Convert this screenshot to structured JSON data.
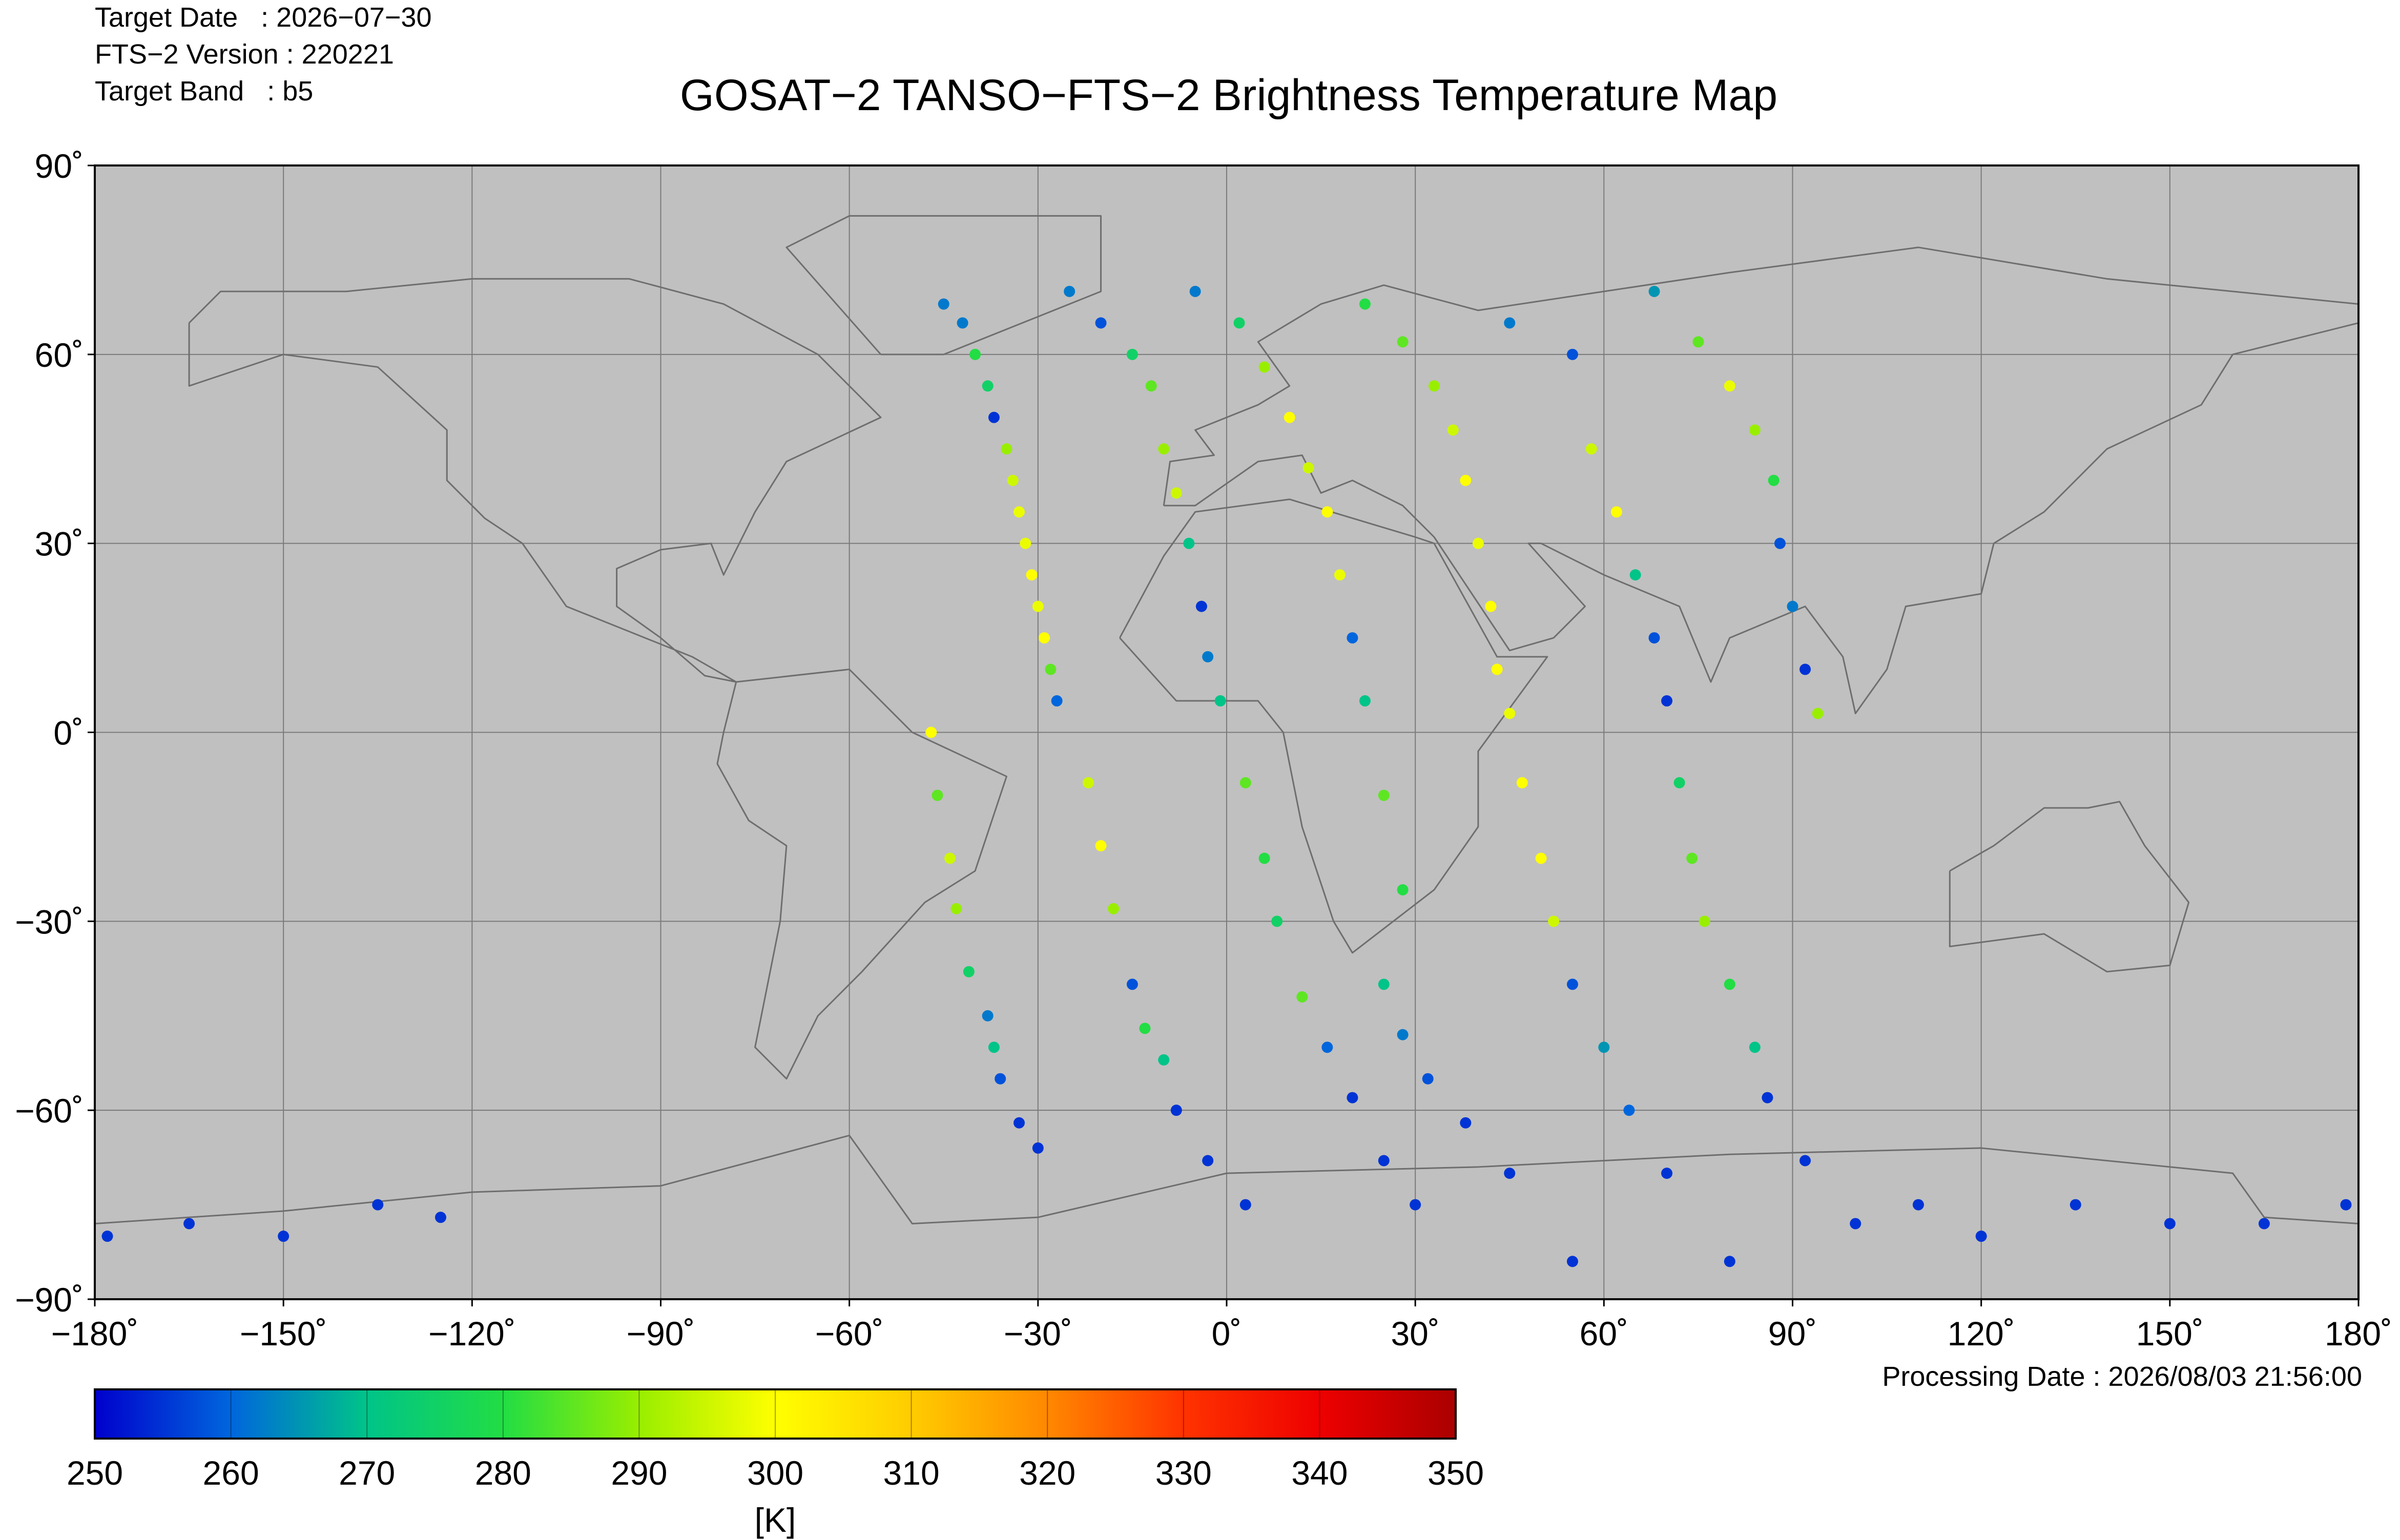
{
  "chart_data": {
    "type": "scatter",
    "title": "GOSAT−2 TANSO−FTS−2 Brightness Temperature Map",
    "header": [
      "Target Date   : 2026−07−30",
      "FTS−2 Version : 220221",
      "Target Band   : b5"
    ],
    "footer": "Processing Date : 2026/08/03 21:56:00",
    "xlim": [
      -180,
      180
    ],
    "ylim": [
      -90,
      90
    ],
    "xticks": [
      {
        "value": -180,
        "label": "−180˚"
      },
      {
        "value": -150,
        "label": "−150˚"
      },
      {
        "value": -120,
        "label": "−120˚"
      },
      {
        "value": -90,
        "label": "−90˚"
      },
      {
        "value": -60,
        "label": "−60˚"
      },
      {
        "value": -30,
        "label": "−30˚"
      },
      {
        "value": 0,
        "label": "0˚"
      },
      {
        "value": 30,
        "label": "30˚"
      },
      {
        "value": 60,
        "label": "60˚"
      },
      {
        "value": 90,
        "label": "90˚"
      },
      {
        "value": 120,
        "label": "120˚"
      },
      {
        "value": 150,
        "label": "150˚"
      },
      {
        "value": 180,
        "label": "180˚"
      }
    ],
    "yticks": [
      {
        "value": 90,
        "label": "90˚"
      },
      {
        "value": 60,
        "label": "60˚"
      },
      {
        "value": 30,
        "label": "30˚"
      },
      {
        "value": 0,
        "label": "0˚"
      },
      {
        "value": -30,
        "label": "−30˚"
      },
      {
        "value": -60,
        "label": "−60˚"
      },
      {
        "value": -90,
        "label": "−90˚"
      }
    ],
    "grid": true,
    "colorbar": {
      "label": "[K]",
      "lim": [
        250,
        350
      ],
      "ticks": [
        250,
        260,
        270,
        280,
        290,
        300,
        310,
        320,
        330,
        340,
        350
      ],
      "colors": [
        "#0000cc",
        "#0066dd",
        "#00c488",
        "#22dd44",
        "#99ee00",
        "#ffff00",
        "#ffcc00",
        "#ff8800",
        "#ff3300",
        "#ee0000",
        "#aa0000"
      ]
    },
    "x": [
      -45,
      -42,
      -40,
      -38,
      -37,
      -35,
      -34,
      -33,
      -32,
      -31,
      -30,
      -29,
      -28,
      -27,
      -47,
      -46,
      -44,
      -43,
      -41,
      -38,
      -37,
      -36,
      -33,
      -30,
      -25,
      -20,
      -15,
      -12,
      -10,
      -8,
      -6,
      -4,
      -3,
      -1,
      -22,
      -20,
      -18,
      -15,
      -13,
      -10,
      -8,
      -3,
      3,
      -5,
      2,
      6,
      10,
      13,
      16,
      18,
      20,
      22,
      3,
      6,
      8,
      12,
      16,
      20,
      25,
      30,
      22,
      28,
      33,
      36,
      38,
      40,
      42,
      43,
      45,
      25,
      28,
      25,
      28,
      32,
      38,
      45,
      45,
      55,
      58,
      62,
      65,
      68,
      70,
      47,
      50,
      52,
      55,
      60,
      64,
      70,
      68,
      75,
      80,
      84,
      87,
      88,
      90,
      92,
      94,
      72,
      74,
      76,
      80,
      84,
      86,
      92,
      -178,
      -165,
      -150,
      -135,
      -125,
      100,
      110,
      120,
      135,
      150,
      165,
      178,
      55,
      80
    ],
    "y": [
      68,
      65,
      60,
      55,
      50,
      45,
      40,
      35,
      30,
      25,
      20,
      15,
      10,
      5,
      0,
      -10,
      -20,
      -28,
      -38,
      -45,
      -50,
      -55,
      -62,
      -66,
      70,
      65,
      60,
      55,
      45,
      38,
      30,
      20,
      12,
      5,
      -8,
      -18,
      -28,
      -40,
      -47,
      -52,
      -60,
      -68,
      -75,
      70,
      65,
      58,
      50,
      42,
      35,
      25,
      15,
      5,
      -8,
      -20,
      -30,
      -42,
      -50,
      -58,
      -68,
      -75,
      68,
      62,
      55,
      48,
      40,
      30,
      20,
      10,
      3,
      -10,
      -25,
      -40,
      -48,
      -55,
      -62,
      -70,
      65,
      60,
      45,
      35,
      25,
      15,
      5,
      -8,
      -20,
      -30,
      -40,
      -50,
      -60,
      -70,
      70,
      62,
      55,
      48,
      40,
      30,
      20,
      10,
      3,
      -8,
      -20,
      -30,
      -40,
      -50,
      -58,
      -68,
      -80,
      -78,
      -80,
      -75,
      -77,
      -78,
      -75,
      -80,
      -75,
      -78,
      -78,
      -75,
      -84,
      -84
    ],
    "values": [
      262,
      262,
      280,
      275,
      255,
      290,
      295,
      298,
      298,
      300,
      298,
      300,
      285,
      260,
      300,
      285,
      295,
      290,
      275,
      262,
      270,
      258,
      255,
      255,
      262,
      258,
      275,
      285,
      290,
      295,
      270,
      255,
      262,
      270,
      295,
      300,
      290,
      258,
      280,
      270,
      255,
      255,
      255,
      262,
      275,
      290,
      300,
      295,
      300,
      298,
      260,
      270,
      285,
      280,
      275,
      285,
      260,
      255,
      255,
      255,
      280,
      285,
      290,
      295,
      300,
      298,
      300,
      300,
      298,
      285,
      280,
      270,
      262,
      258,
      255,
      255,
      262,
      258,
      295,
      300,
      270,
      258,
      255,
      300,
      300,
      295,
      258,
      265,
      260,
      255,
      265,
      285,
      298,
      290,
      280,
      258,
      262,
      255,
      290,
      275,
      285,
      290,
      280,
      270,
      255,
      255,
      255,
      255,
      255,
      255,
      255,
      255,
      255,
      255,
      255,
      255,
      255,
      255,
      255,
      255
    ]
  }
}
